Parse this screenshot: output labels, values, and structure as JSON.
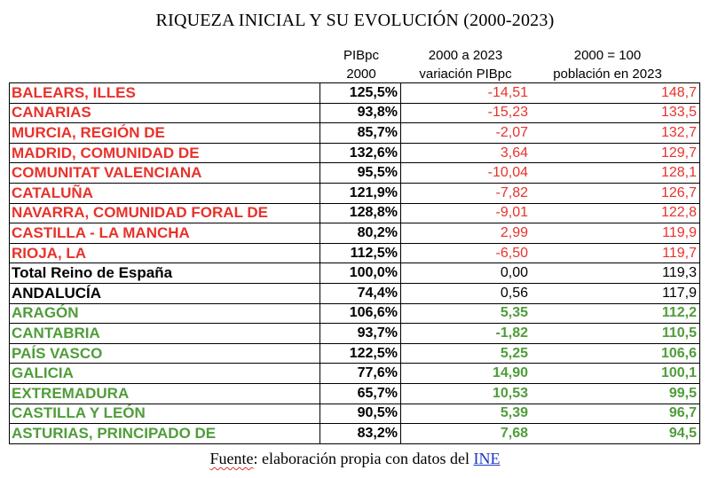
{
  "title": "RIQUEZA INICIAL Y SU EVOLUCIÓN (2000-2023)",
  "headers": {
    "col1": [
      "PIBpc",
      "2000"
    ],
    "col2": [
      "2000 a 2023",
      "variación PIBpc"
    ],
    "col3": [
      "2000 = 100",
      "población en 2023"
    ]
  },
  "colors": {
    "red": "#e8322b",
    "green": "#4f9d3a",
    "black": "#000000",
    "link": "#1a35c8"
  },
  "rows": [
    {
      "name": "BALEARS, ILLES",
      "pib": "125,5%",
      "var": "-14,51",
      "pob": "148,7",
      "color": "red"
    },
    {
      "name": "CANARIAS",
      "pib": "93,8%",
      "var": "-15,23",
      "pob": "133,5",
      "color": "red"
    },
    {
      "name": "MURCIA, REGIÓN DE",
      "pib": "85,7%",
      "var": "-2,07",
      "pob": "132,7",
      "color": "red"
    },
    {
      "name": "MADRID, COMUNIDAD DE",
      "pib": "132,6%",
      "var": "3,64",
      "pob": "129,7",
      "color": "red"
    },
    {
      "name": "COMUNITAT VALENCIANA",
      "pib": "95,5%",
      "var": "-10,04",
      "pob": "128,1",
      "color": "red"
    },
    {
      "name": "CATALUÑA",
      "pib": "121,9%",
      "var": "-7,82",
      "pob": "126,7",
      "color": "red"
    },
    {
      "name": "NAVARRA, COMUNIDAD FORAL DE",
      "pib": "128,8%",
      "var": "-9,01",
      "pob": "122,8",
      "color": "red"
    },
    {
      "name": "CASTILLA - LA MANCHA",
      "pib": "80,2%",
      "var": "2,99",
      "pob": "119,9",
      "color": "red"
    },
    {
      "name": "RIOJA, LA",
      "pib": "112,5%",
      "var": "-6,50",
      "pob": "119,7",
      "color": "red"
    },
    {
      "name": "Total Reino de España",
      "pib": "100,0%",
      "var": "0,00",
      "pob": "119,3",
      "color": "black"
    },
    {
      "name": "ANDALUCÍA",
      "pib": "74,4%",
      "var": "0,56",
      "pob": "117,9",
      "color": "black"
    },
    {
      "name": "ARAGÓN",
      "pib": "106,6%",
      "var": "5,35",
      "pob": "112,2",
      "color": "green"
    },
    {
      "name": "CANTABRIA",
      "pib": "93,7%",
      "var": "-1,82",
      "pob": "110,5",
      "color": "green"
    },
    {
      "name": "PAÍS VASCO",
      "pib": "122,5%",
      "var": "5,25",
      "pob": "106,6",
      "color": "green"
    },
    {
      "name": "GALICIA",
      "pib": "77,6%",
      "var": "14,90",
      "pob": "100,1",
      "color": "green"
    },
    {
      "name": "EXTREMADURA",
      "pib": "65,7%",
      "var": "10,53",
      "pob": "99,5",
      "color": "green"
    },
    {
      "name": "CASTILLA Y LEÓN",
      "pib": "90,5%",
      "var": "5,39",
      "pob": "96,7",
      "color": "green"
    },
    {
      "name": "ASTURIAS, PRINCIPADO DE",
      "pib": "83,2%",
      "var": "7,68",
      "pob": "94,5",
      "color": "green"
    }
  ],
  "source": {
    "prefix": "Fuente",
    "middle": ": elaboración propia con datos del ",
    "link": "INE"
  }
}
